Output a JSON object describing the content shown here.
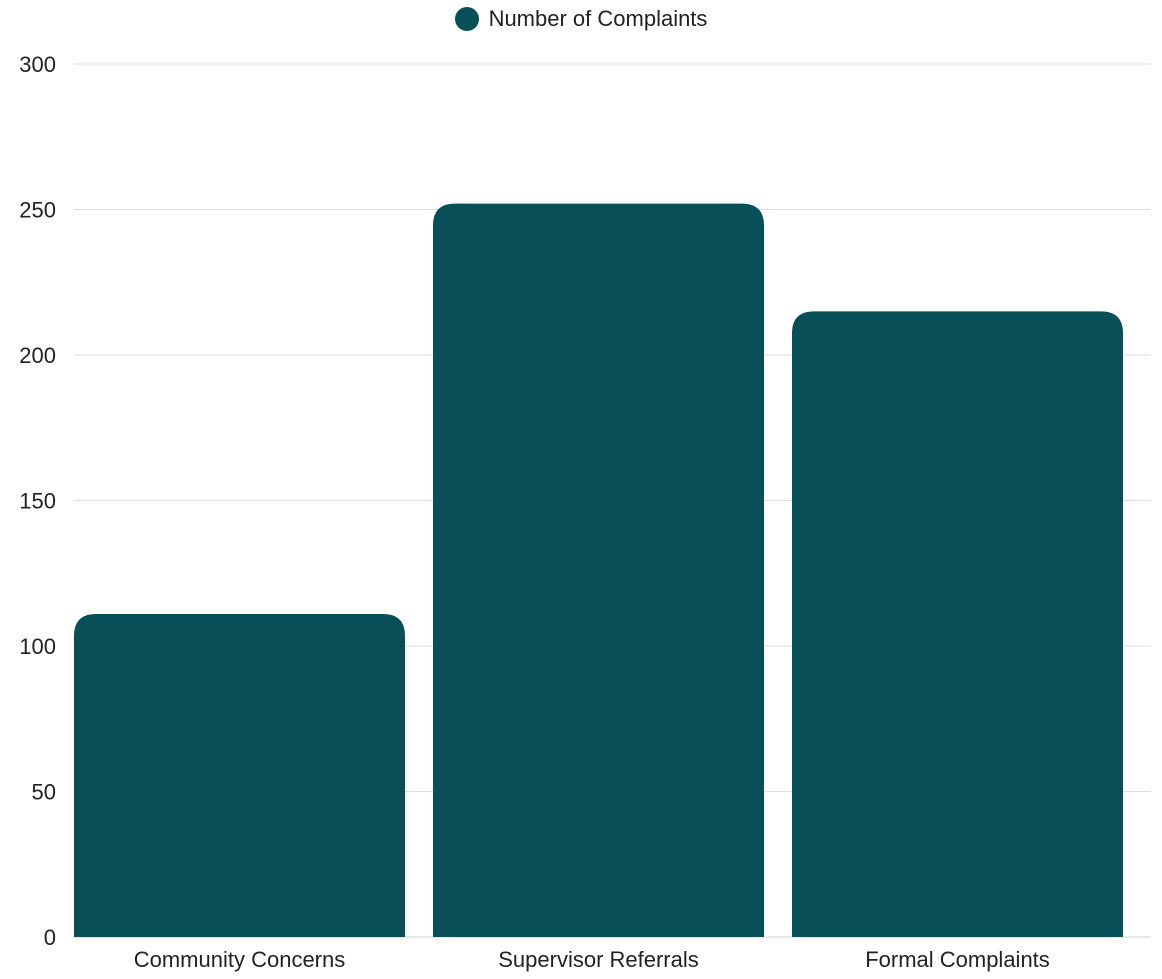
{
  "chart_data": {
    "type": "bar",
    "categories": [
      "Community Concerns",
      "Supervisor Referrals",
      "Formal Complaints"
    ],
    "series": [
      {
        "name": "Number of Complaints",
        "values": [
          111,
          252,
          215
        ],
        "color": "#084f57"
      }
    ],
    "ylim": [
      0,
      300
    ],
    "yticks": [
      0,
      50,
      100,
      150,
      200,
      250,
      300
    ],
    "grid": true,
    "legend_position": "top-center",
    "xlabel": "",
    "ylabel": ""
  }
}
